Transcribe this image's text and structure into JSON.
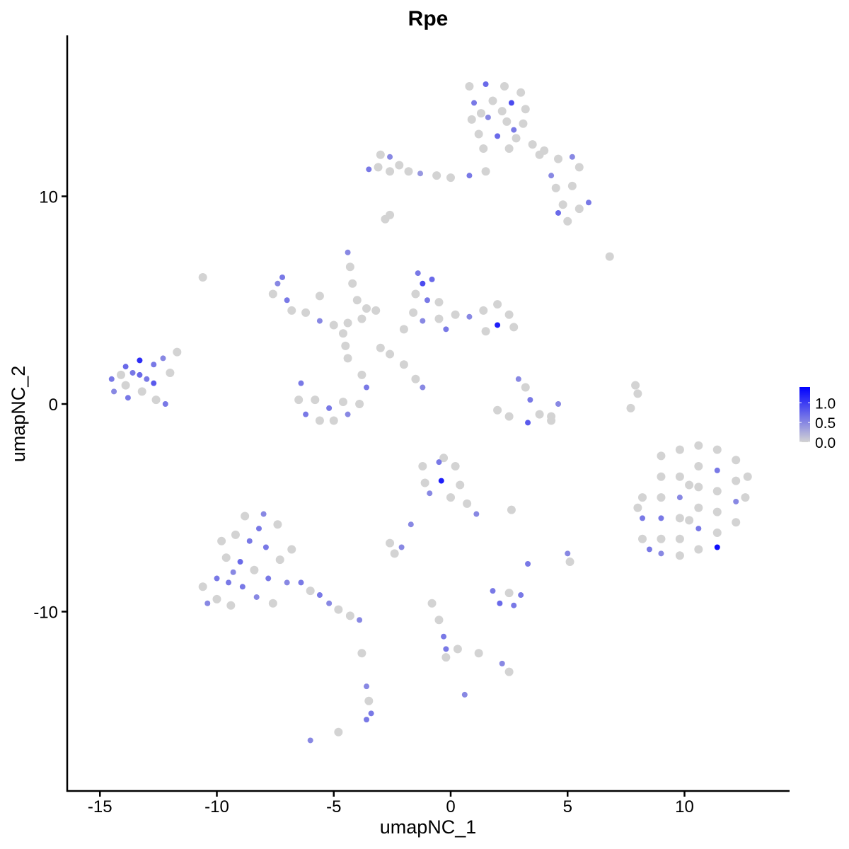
{
  "chart_data": {
    "type": "scatter",
    "title": "Rpe",
    "xlabel": "umapNC_1",
    "ylabel": "umapNC_2",
    "xlim": [
      -16.4,
      14.5
    ],
    "ylim": [
      -18.6,
      17.75
    ],
    "x_ticks": [
      -15,
      -10,
      -5,
      0,
      5,
      10
    ],
    "x_tick_labels": [
      "-15",
      "-10",
      "-5",
      "0",
      "5",
      "10"
    ],
    "y_ticks": [
      -10,
      0,
      10
    ],
    "y_tick_labels": [
      "-10",
      "0",
      "10"
    ],
    "grid": false,
    "legend": {
      "placement": "right",
      "type": "colorbar",
      "ticks": [
        0.0,
        0.5,
        1.0
      ],
      "tick_labels": [
        "0.0",
        "0.5",
        "1.0"
      ],
      "range": [
        0,
        1.4
      ],
      "low_color": "#d3d3d3",
      "high_color": "#0000ff"
    },
    "points": [
      [
        0.8,
        15.3,
        0
      ],
      [
        1.5,
        15.4,
        0.7
      ],
      [
        2.3,
        15.3,
        0
      ],
      [
        3.0,
        15.0,
        0
      ],
      [
        1.0,
        14.5,
        0.6
      ],
      [
        1.8,
        14.6,
        0
      ],
      [
        2.6,
        14.5,
        0.9
      ],
      [
        3.2,
        14.2,
        0
      ],
      [
        0.9,
        13.7,
        0
      ],
      [
        1.6,
        13.8,
        0.5
      ],
      [
        2.4,
        13.6,
        0
      ],
      [
        3.1,
        13.5,
        0
      ],
      [
        1.2,
        13.0,
        0
      ],
      [
        2.0,
        12.9,
        0.7
      ],
      [
        2.8,
        12.8,
        0
      ],
      [
        1.4,
        12.3,
        0
      ],
      [
        2.5,
        12.3,
        0
      ],
      [
        3.5,
        12.5,
        0
      ],
      [
        3.8,
        12.0,
        0
      ],
      [
        1.3,
        14.0,
        0
      ],
      [
        2.2,
        14.1,
        0
      ],
      [
        2.7,
        13.2,
        0.6
      ],
      [
        -3.0,
        12.0,
        0
      ],
      [
        -2.6,
        11.9,
        0.5
      ],
      [
        -3.1,
        11.4,
        0
      ],
      [
        -2.6,
        11.2,
        0
      ],
      [
        -2.2,
        11.5,
        0
      ],
      [
        -1.8,
        11.2,
        0
      ],
      [
        -1.3,
        11.1,
        0.4
      ],
      [
        -0.6,
        11.0,
        0
      ],
      [
        0.0,
        10.9,
        0
      ],
      [
        0.8,
        11.0,
        0.6
      ],
      [
        1.5,
        11.2,
        0
      ],
      [
        -3.5,
        11.3,
        0.6
      ],
      [
        4.0,
        12.2,
        0
      ],
      [
        4.6,
        11.8,
        0
      ],
      [
        5.2,
        11.9,
        0.5
      ],
      [
        5.5,
        11.4,
        0
      ],
      [
        4.3,
        11.0,
        0.5
      ],
      [
        4.5,
        10.4,
        0
      ],
      [
        5.2,
        10.5,
        0
      ],
      [
        5.9,
        9.7,
        0.6
      ],
      [
        5.5,
        9.4,
        0
      ],
      [
        4.6,
        9.2,
        0.7
      ],
      [
        5.0,
        8.8,
        0
      ],
      [
        4.8,
        9.6,
        0
      ],
      [
        -14.5,
        1.2,
        0.6
      ],
      [
        -14.4,
        0.6,
        0.5
      ],
      [
        -13.9,
        1.8,
        0.7
      ],
      [
        -13.9,
        0.9,
        0
      ],
      [
        -13.8,
        0.3,
        0.6
      ],
      [
        -13.3,
        2.1,
        1.1
      ],
      [
        -13.3,
        1.4,
        0.7
      ],
      [
        -13.2,
        0.6,
        0
      ],
      [
        -12.7,
        1.9,
        0.6
      ],
      [
        -12.7,
        1.0,
        0.8
      ],
      [
        -12.6,
        0.2,
        0
      ],
      [
        -12.2,
        0.0,
        0.6
      ],
      [
        -12.0,
        1.5,
        0
      ],
      [
        -11.7,
        2.5,
        0
      ],
      [
        -12.3,
        2.2,
        0.5
      ],
      [
        -13.6,
        1.5,
        0.6
      ],
      [
        -14.1,
        1.4,
        0
      ],
      [
        -13.0,
        1.2,
        0.6
      ],
      [
        -7.4,
        5.8,
        0.5
      ],
      [
        -7.6,
        5.3,
        0
      ],
      [
        -7.0,
        5.0,
        0.6
      ],
      [
        -6.8,
        4.5,
        0
      ],
      [
        -6.2,
        4.4,
        0
      ],
      [
        -5.6,
        4.0,
        0.5
      ],
      [
        -5.0,
        3.8,
        0
      ],
      [
        -4.4,
        3.9,
        0
      ],
      [
        -3.8,
        4.1,
        0
      ],
      [
        -7.2,
        6.1,
        0.6
      ],
      [
        -5.6,
        5.2,
        0
      ],
      [
        -4.4,
        7.3,
        0.5
      ],
      [
        -4.3,
        6.6,
        0
      ],
      [
        -4.2,
        5.8,
        0
      ],
      [
        -4.0,
        5.0,
        0
      ],
      [
        -3.6,
        4.6,
        0
      ],
      [
        -3.2,
        4.5,
        0
      ],
      [
        -6.4,
        1.0,
        0.6
      ],
      [
        -6.5,
        0.2,
        0
      ],
      [
        -6.2,
        -0.5,
        0.6
      ],
      [
        -5.6,
        -0.8,
        0
      ],
      [
        -5.0,
        -0.8,
        0
      ],
      [
        -4.4,
        -0.5,
        0.5
      ],
      [
        -3.9,
        0.0,
        0
      ],
      [
        -3.6,
        0.8,
        0.6
      ],
      [
        -3.8,
        1.4,
        0
      ],
      [
        -5.8,
        0.2,
        0
      ],
      [
        -5.2,
        -0.2,
        0.6
      ],
      [
        -4.6,
        0.1,
        0
      ],
      [
        -4.4,
        2.2,
        0
      ],
      [
        -4.5,
        2.8,
        0
      ],
      [
        -4.6,
        3.4,
        0
      ],
      [
        -1.4,
        6.3,
        0.6
      ],
      [
        -1.2,
        5.8,
        0.9
      ],
      [
        -0.8,
        6.0,
        0.7
      ],
      [
        -1.5,
        5.3,
        0
      ],
      [
        -1.0,
        5.0,
        0.6
      ],
      [
        -0.5,
        4.9,
        0
      ],
      [
        -1.6,
        4.4,
        0
      ],
      [
        -1.2,
        4.0,
        0.5
      ],
      [
        -0.5,
        4.1,
        0
      ],
      [
        0.2,
        4.3,
        0
      ],
      [
        0.8,
        4.2,
        0.5
      ],
      [
        1.4,
        4.5,
        0
      ],
      [
        2.0,
        4.8,
        0
      ],
      [
        2.5,
        4.3,
        0
      ],
      [
        2.0,
        3.8,
        1.2
      ],
      [
        2.7,
        3.7,
        0
      ],
      [
        -2.0,
        3.6,
        0
      ],
      [
        -0.2,
        3.6,
        0.6
      ],
      [
        1.5,
        3.5,
        0
      ],
      [
        2.9,
        1.2,
        0.5
      ],
      [
        3.2,
        0.8,
        0
      ],
      [
        3.4,
        0.2,
        0.6
      ],
      [
        3.8,
        -0.5,
        0
      ],
      [
        3.3,
        -0.9,
        0.8
      ],
      [
        2.5,
        -0.6,
        0
      ],
      [
        2.0,
        -0.3,
        0
      ],
      [
        4.3,
        -0.8,
        0
      ],
      [
        4.6,
        0.0,
        0.5
      ],
      [
        4.3,
        -0.6,
        0
      ],
      [
        -10.6,
        6.1,
        0
      ],
      [
        -2.8,
        8.9,
        0
      ],
      [
        -2.6,
        9.1,
        0
      ],
      [
        6.8,
        7.1,
        0
      ],
      [
        7.9,
        0.9,
        0
      ],
      [
        8.0,
        0.5,
        0
      ],
      [
        7.7,
        -0.2,
        0
      ],
      [
        -2.6,
        2.4,
        0
      ],
      [
        -2.0,
        1.9,
        0
      ],
      [
        -1.5,
        1.2,
        0
      ],
      [
        -1.2,
        0.8,
        0.5
      ],
      [
        -3.0,
        2.7,
        0
      ],
      [
        8.2,
        -4.5,
        0
      ],
      [
        8.0,
        -5.0,
        0
      ],
      [
        8.5,
        -7.0,
        0.6
      ],
      [
        8.2,
        -5.5,
        0.6
      ],
      [
        8.2,
        -6.5,
        0
      ],
      [
        9.0,
        -2.5,
        0
      ],
      [
        9.0,
        -3.5,
        0
      ],
      [
        9.0,
        -4.5,
        0
      ],
      [
        9.0,
        -5.5,
        0.6
      ],
      [
        9.0,
        -6.5,
        0
      ],
      [
        9.0,
        -7.2,
        0.5
      ],
      [
        9.8,
        -2.2,
        0
      ],
      [
        9.8,
        -3.5,
        0
      ],
      [
        9.8,
        -4.5,
        0.5
      ],
      [
        9.8,
        -5.5,
        0
      ],
      [
        9.8,
        -6.5,
        0
      ],
      [
        9.8,
        -7.3,
        0
      ],
      [
        10.6,
        -2.0,
        0
      ],
      [
        10.6,
        -3.0,
        0
      ],
      [
        10.6,
        -4.0,
        0
      ],
      [
        10.6,
        -5.0,
        0
      ],
      [
        10.6,
        -6.0,
        0.6
      ],
      [
        10.6,
        -7.0,
        0
      ],
      [
        11.4,
        -2.2,
        0
      ],
      [
        11.4,
        -3.2,
        0.6
      ],
      [
        11.4,
        -4.2,
        0
      ],
      [
        11.4,
        -5.2,
        0
      ],
      [
        11.4,
        -6.2,
        0
      ],
      [
        11.4,
        -6.9,
        1.3
      ],
      [
        12.2,
        -2.7,
        0
      ],
      [
        12.2,
        -3.7,
        0
      ],
      [
        12.2,
        -4.7,
        0.5
      ],
      [
        12.2,
        -5.7,
        0
      ],
      [
        12.7,
        -3.5,
        0
      ],
      [
        12.6,
        -4.5,
        0
      ],
      [
        10.2,
        -5.6,
        0
      ],
      [
        10.2,
        -3.9,
        0
      ],
      [
        -10.6,
        -8.8,
        0
      ],
      [
        -10.4,
        -9.6,
        0.5
      ],
      [
        -10.0,
        -8.4,
        0.6
      ],
      [
        -10.0,
        -9.4,
        0
      ],
      [
        -9.6,
        -7.4,
        0
      ],
      [
        -9.5,
        -8.6,
        0.6
      ],
      [
        -9.4,
        -9.7,
        0
      ],
      [
        -9.2,
        -6.3,
        0
      ],
      [
        -9.0,
        -7.6,
        0.7
      ],
      [
        -8.9,
        -8.8,
        0.6
      ],
      [
        -8.8,
        -5.4,
        0
      ],
      [
        -8.6,
        -6.6,
        0.6
      ],
      [
        -8.4,
        -8.0,
        0
      ],
      [
        -8.3,
        -9.3,
        0.5
      ],
      [
        -8.0,
        -5.3,
        0.5
      ],
      [
        -7.9,
        -6.9,
        0.6
      ],
      [
        -7.8,
        -8.4,
        0.6
      ],
      [
        -7.6,
        -9.6,
        0
      ],
      [
        -7.4,
        -5.8,
        0
      ],
      [
        -7.3,
        -7.5,
        0
      ],
      [
        -7.0,
        -8.6,
        0.5
      ],
      [
        -6.8,
        -7.0,
        0
      ],
      [
        -9.8,
        -6.6,
        0
      ],
      [
        -8.2,
        -6.0,
        0.6
      ],
      [
        -9.3,
        -8.1,
        0.5
      ],
      [
        -6.4,
        -8.6,
        0.6
      ],
      [
        -6.0,
        -9.0,
        0
      ],
      [
        -5.6,
        -9.2,
        0.6
      ],
      [
        -5.2,
        -9.6,
        0.5
      ],
      [
        -4.8,
        -9.9,
        0
      ],
      [
        -4.3,
        -10.2,
        0
      ],
      [
        -3.9,
        -10.4,
        0.5
      ],
      [
        -1.2,
        -3.0,
        0
      ],
      [
        -0.5,
        -2.8,
        0.6
      ],
      [
        0.2,
        -3.0,
        0
      ],
      [
        -1.1,
        -3.8,
        0
      ],
      [
        -0.4,
        -3.7,
        1.2
      ],
      [
        0.4,
        -3.9,
        0
      ],
      [
        -0.9,
        -4.3,
        0.5
      ],
      [
        0.0,
        -4.5,
        0
      ],
      [
        0.7,
        -4.8,
        0
      ],
      [
        1.1,
        -5.3,
        0.5
      ],
      [
        -0.3,
        -2.6,
        0
      ],
      [
        -2.6,
        -6.7,
        0
      ],
      [
        -2.1,
        -6.9,
        0.5
      ],
      [
        -2.4,
        -7.2,
        0
      ],
      [
        -1.7,
        -5.8,
        0.5
      ],
      [
        1.8,
        -9.0,
        0.6
      ],
      [
        2.5,
        -9.1,
        0
      ],
      [
        3.0,
        -9.2,
        0.6
      ],
      [
        2.1,
        -9.6,
        0.7
      ],
      [
        2.7,
        -9.7,
        0.6
      ],
      [
        5.0,
        -7.2,
        0.5
      ],
      [
        5.1,
        -7.6,
        0
      ],
      [
        3.3,
        -7.7,
        0.6
      ],
      [
        -0.8,
        -9.6,
        0
      ],
      [
        -0.5,
        -10.4,
        0
      ],
      [
        -0.3,
        -11.2,
        0.6
      ],
      [
        -0.2,
        -11.8,
        0.6
      ],
      [
        -0.2,
        -12.2,
        0
      ],
      [
        0.3,
        -11.8,
        0
      ],
      [
        1.2,
        -12.0,
        0
      ],
      [
        2.2,
        -12.5,
        0.5
      ],
      [
        2.5,
        -12.9,
        0
      ],
      [
        -3.6,
        -13.6,
        0.5
      ],
      [
        -3.5,
        -14.3,
        0
      ],
      [
        -3.4,
        -14.9,
        0.6
      ],
      [
        -3.6,
        -15.2,
        0.6
      ],
      [
        -3.8,
        -12.0,
        0
      ],
      [
        -6.0,
        -16.2,
        0.5
      ],
      [
        -4.8,
        -15.8,
        0
      ],
      [
        0.6,
        -14.0,
        0.5
      ],
      [
        2.6,
        -5.1,
        0
      ]
    ]
  }
}
